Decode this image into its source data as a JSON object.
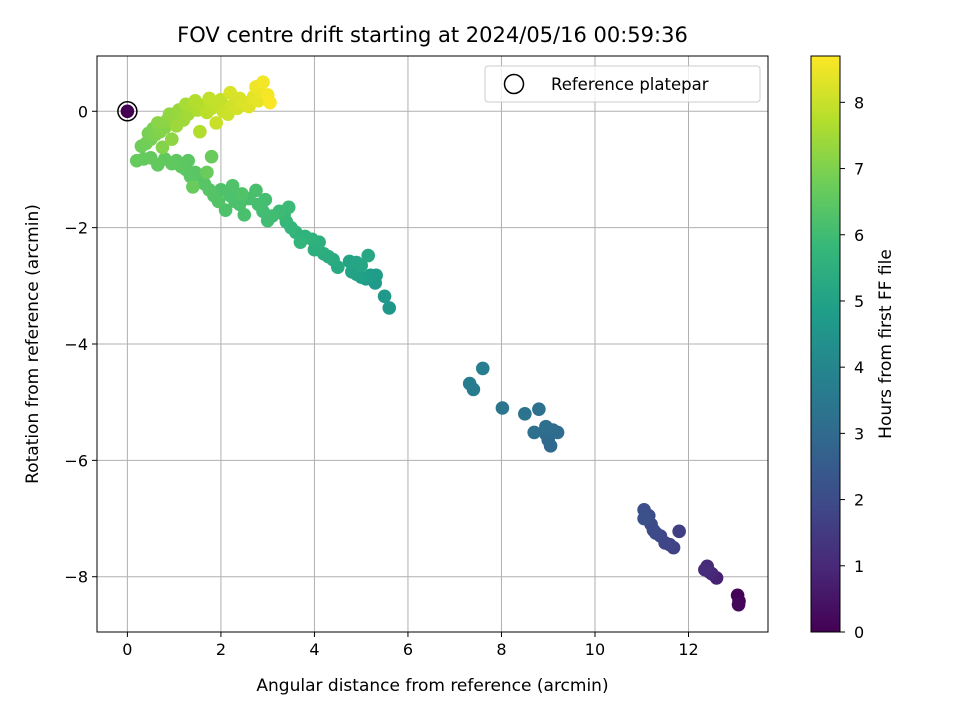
{
  "chart_data": {
    "type": "scatter",
    "title": "FOV centre drift starting at 2024/05/16 00:59:36",
    "xlabel": "Angular distance from reference (arcmin)",
    "ylabel": "Rotation from reference (arcmin)",
    "xlim": [
      -0.65,
      13.7
    ],
    "ylim": [
      -8.95,
      0.95
    ],
    "xticks": [
      0,
      2,
      4,
      6,
      8,
      10,
      12
    ],
    "yticks": [
      0,
      -2,
      -4,
      -6,
      -8
    ],
    "grid": true,
    "legend": {
      "placement": "top-right",
      "entries": [
        "Reference platepar"
      ]
    },
    "colorbar": {
      "label": "Hours from first FF file",
      "colormap": "viridis",
      "range": [
        0,
        8.7
      ],
      "ticks": [
        0,
        1,
        2,
        3,
        4,
        5,
        6,
        7,
        8
      ]
    },
    "reference_point": {
      "x": 0,
      "y": 0,
      "hours": 0
    },
    "points_columns": [
      "x",
      "y",
      "hours"
    ],
    "points": [
      [
        13.05,
        -8.32,
        0.05
      ],
      [
        13.08,
        -8.42,
        0.1
      ],
      [
        13.07,
        -8.48,
        0.15
      ],
      [
        12.6,
        -8.02,
        0.8
      ],
      [
        12.5,
        -7.95,
        0.9
      ],
      [
        12.45,
        -7.92,
        1.0
      ],
      [
        12.4,
        -7.82,
        1.05
      ],
      [
        12.35,
        -7.88,
        1.1
      ],
      [
        11.8,
        -7.22,
        1.6
      ],
      [
        11.68,
        -7.5,
        1.7
      ],
      [
        11.6,
        -7.45,
        1.75
      ],
      [
        11.5,
        -7.42,
        1.8
      ],
      [
        11.4,
        -7.3,
        1.85
      ],
      [
        11.3,
        -7.25,
        1.9
      ],
      [
        11.25,
        -7.2,
        1.95
      ],
      [
        11.2,
        -7.1,
        2.0
      ],
      [
        11.15,
        -6.95,
        2.05
      ],
      [
        11.05,
        -6.85,
        2.1
      ],
      [
        11.05,
        -7.0,
        2.15
      ],
      [
        9.05,
        -5.75,
        2.9
      ],
      [
        9.0,
        -5.65,
        2.95
      ],
      [
        8.95,
        -5.55,
        3.0
      ],
      [
        9.2,
        -5.52,
        3.05
      ],
      [
        9.1,
        -5.48,
        3.1
      ],
      [
        8.95,
        -5.42,
        3.15
      ],
      [
        8.7,
        -5.52,
        3.2
      ],
      [
        8.8,
        -5.12,
        3.25
      ],
      [
        8.5,
        -5.2,
        3.3
      ],
      [
        8.02,
        -5.1,
        3.4
      ],
      [
        7.4,
        -4.78,
        3.6
      ],
      [
        7.32,
        -4.68,
        3.65
      ],
      [
        7.6,
        -4.42,
        3.7
      ],
      [
        5.6,
        -3.38,
        4.6
      ],
      [
        5.5,
        -3.18,
        4.65
      ],
      [
        5.3,
        -2.95,
        4.7
      ],
      [
        5.32,
        -2.82,
        4.75
      ],
      [
        5.2,
        -2.82,
        4.8
      ],
      [
        5.1,
        -2.88,
        4.85
      ],
      [
        5.0,
        -2.85,
        4.9
      ],
      [
        4.9,
        -2.8,
        4.95
      ],
      [
        4.8,
        -2.76,
        5.0
      ],
      [
        4.75,
        -2.58,
        5.05
      ],
      [
        4.9,
        -2.6,
        5.1
      ],
      [
        5.0,
        -2.65,
        5.15
      ],
      [
        5.15,
        -2.48,
        5.2
      ],
      [
        4.5,
        -2.68,
        5.25
      ],
      [
        4.4,
        -2.55,
        5.3
      ],
      [
        4.3,
        -2.5,
        5.35
      ],
      [
        4.2,
        -2.45,
        5.4
      ],
      [
        4.0,
        -2.38,
        5.45
      ],
      [
        4.1,
        -2.25,
        5.5
      ],
      [
        3.95,
        -2.2,
        5.55
      ],
      [
        3.8,
        -2.15,
        5.6
      ],
      [
        3.6,
        -2.08,
        5.65
      ],
      [
        3.7,
        -2.25,
        5.7
      ],
      [
        3.5,
        -2.0,
        5.75
      ],
      [
        3.4,
        -1.9,
        5.8
      ],
      [
        3.35,
        -1.78,
        5.85
      ],
      [
        3.45,
        -1.65,
        5.9
      ],
      [
        3.25,
        -1.72,
        5.95
      ],
      [
        3.1,
        -1.8,
        6.0
      ],
      [
        3.0,
        -1.88,
        6.02
      ],
      [
        2.9,
        -1.72,
        6.05
      ],
      [
        2.95,
        -1.52,
        6.08
      ],
      [
        2.8,
        -1.6,
        6.1
      ],
      [
        2.6,
        -1.5,
        6.12
      ],
      [
        2.75,
        -1.36,
        6.14
      ],
      [
        2.5,
        -1.78,
        6.16
      ],
      [
        2.4,
        -1.6,
        6.18
      ],
      [
        2.3,
        -1.55,
        6.2
      ],
      [
        2.2,
        -1.45,
        6.22
      ],
      [
        2.1,
        -1.7,
        6.24
      ],
      [
        2.0,
        -1.35,
        6.26
      ],
      [
        2.25,
        -1.28,
        6.28
      ],
      [
        2.45,
        -1.42,
        6.3
      ],
      [
        1.95,
        -1.55,
        6.32
      ],
      [
        1.85,
        -1.45,
        6.34
      ],
      [
        1.75,
        -1.35,
        6.36
      ],
      [
        1.65,
        -1.25,
        6.38
      ],
      [
        1.55,
        -1.1,
        6.4
      ],
      [
        1.45,
        -1.05,
        6.42
      ],
      [
        1.35,
        -1.12,
        6.44
      ],
      [
        1.25,
        -1.0,
        6.46
      ],
      [
        1.3,
        -0.85,
        6.48
      ],
      [
        1.15,
        -0.95,
        6.5
      ],
      [
        1.05,
        -0.85,
        6.52
      ],
      [
        0.95,
        -0.9,
        6.54
      ],
      [
        0.8,
        -0.82,
        6.56
      ],
      [
        0.65,
        -0.92,
        6.58
      ],
      [
        0.5,
        -0.8,
        6.6
      ],
      [
        0.35,
        -0.82,
        6.62
      ],
      [
        0.2,
        -0.85,
        6.64
      ],
      [
        1.4,
        -1.3,
        6.66
      ],
      [
        1.7,
        -1.05,
        6.68
      ],
      [
        1.8,
        -0.78,
        6.7
      ],
      [
        0.3,
        -0.6,
        6.75
      ],
      [
        0.4,
        -0.55,
        6.8
      ],
      [
        0.5,
        -0.48,
        6.85
      ],
      [
        0.45,
        -0.38,
        6.9
      ],
      [
        0.55,
        -0.3,
        6.95
      ],
      [
        0.6,
        -0.4,
        7.0
      ],
      [
        0.7,
        -0.35,
        7.05
      ],
      [
        0.8,
        -0.28,
        7.1
      ],
      [
        0.65,
        -0.2,
        7.15
      ],
      [
        0.85,
        -0.15,
        7.2
      ],
      [
        0.9,
        -0.05,
        7.25
      ],
      [
        1.0,
        -0.1,
        7.3
      ],
      [
        1.1,
        0.02,
        7.35
      ],
      [
        1.05,
        -0.25,
        7.4
      ],
      [
        1.2,
        -0.15,
        7.45
      ],
      [
        1.3,
        -0.05,
        7.5
      ],
      [
        1.25,
        0.12,
        7.55
      ],
      [
        1.4,
        0.08,
        7.6
      ],
      [
        1.5,
        0.02,
        7.65
      ],
      [
        1.45,
        0.18,
        7.7
      ],
      [
        1.6,
        0.1,
        7.75
      ],
      [
        1.7,
        -0.02,
        7.8
      ],
      [
        1.8,
        0.05,
        7.85
      ],
      [
        1.9,
        0.12,
        7.9
      ],
      [
        2.0,
        0.2,
        7.95
      ],
      [
        2.05,
        0.0,
        8.0
      ],
      [
        2.15,
        -0.05,
        8.05
      ],
      [
        2.25,
        0.1,
        8.1
      ],
      [
        2.35,
        0.05,
        8.15
      ],
      [
        2.4,
        0.22,
        8.2
      ],
      [
        2.5,
        0.15,
        8.25
      ],
      [
        2.6,
        0.08,
        8.3
      ],
      [
        2.7,
        0.25,
        8.35
      ],
      [
        2.8,
        0.18,
        8.4
      ],
      [
        2.85,
        0.32,
        8.45
      ],
      [
        2.75,
        0.42,
        8.5
      ],
      [
        2.9,
        0.5,
        8.55
      ],
      [
        3.0,
        0.28,
        8.6
      ],
      [
        3.05,
        0.15,
        8.65
      ],
      [
        1.9,
        -0.2,
        8.0
      ],
      [
        2.2,
        0.32,
        8.2
      ],
      [
        1.55,
        -0.35,
        7.7
      ],
      [
        0.95,
        -0.48,
        7.2
      ],
      [
        0.75,
        -0.62,
        7.05
      ],
      [
        1.75,
        0.22,
        7.9
      ]
    ]
  }
}
